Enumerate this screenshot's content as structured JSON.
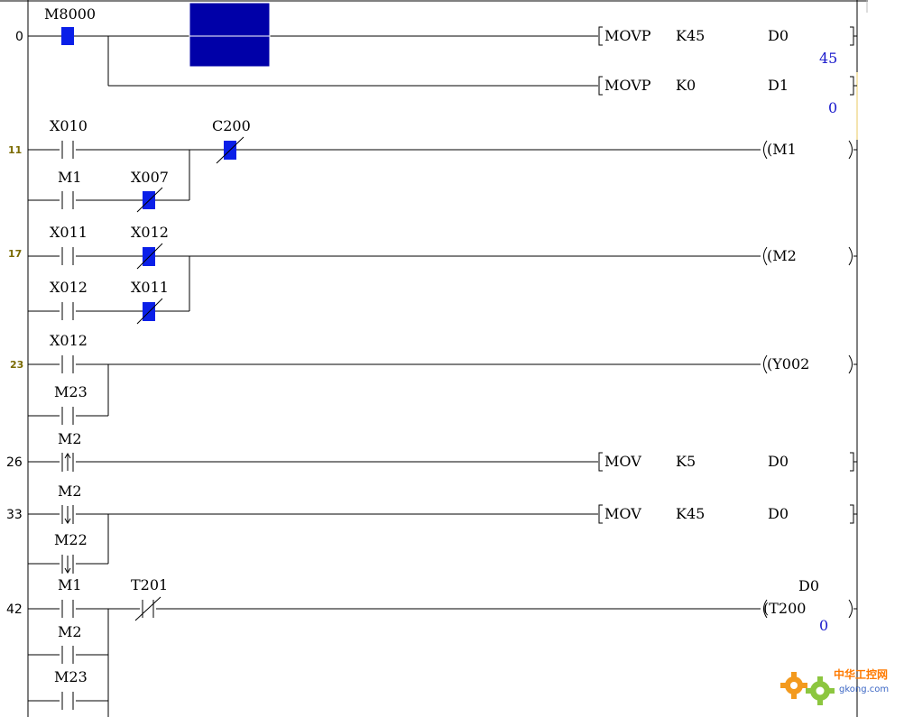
{
  "steps": [
    "0",
    "11",
    "17",
    "23",
    "26",
    "33",
    "42"
  ],
  "rungs": {
    "r0": {
      "contact": "M8000",
      "instr1": [
        "MOVP",
        "K45",
        "D0"
      ],
      "cur1": "45",
      "instr2": [
        "MOVP",
        "K0",
        "D1"
      ],
      "cur2": "0"
    },
    "r11": {
      "x010": "X010",
      "c200": "C200",
      "m1": "M1",
      "x007": "X007",
      "coil": "(M1"
    },
    "r17": {
      "x011": "X011",
      "x012": "X012",
      "x012b": "X012",
      "x011b": "X011",
      "coil": "(M2"
    },
    "r23": {
      "x012": "X012",
      "m23": "M23",
      "coil": "(Y002"
    },
    "r26": {
      "m2": "M2",
      "instr": [
        "MOV",
        "K5",
        "D0"
      ]
    },
    "r33": {
      "m2": "M2",
      "m22": "M22",
      "instr": [
        "MOV",
        "K45",
        "D0"
      ]
    },
    "r42": {
      "m1": "M1",
      "t201": "T201",
      "m2": "M2",
      "m23": "M23",
      "coil": "(T200",
      "setval": "D0",
      "cur": "0"
    }
  },
  "watermark": {
    "cn": "中华工控网",
    "en": "gkong.com"
  },
  "colors": {
    "cursor": "#0000a8",
    "active_contact": "#0a1fe8",
    "current_value": "#1a1acc"
  }
}
